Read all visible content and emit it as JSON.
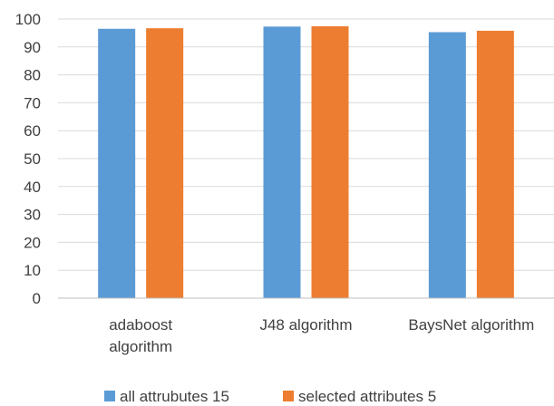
{
  "chart_data": {
    "type": "bar",
    "title": "",
    "xlabel": "",
    "ylabel": "",
    "ylim": [
      0,
      100
    ],
    "yticks": [
      0,
      10,
      20,
      30,
      40,
      50,
      60,
      70,
      80,
      90,
      100
    ],
    "grid": true,
    "legend_position": "bottom",
    "categories": [
      [
        "adaboost",
        "algorithm"
      ],
      [
        "J48 algorithm"
      ],
      [
        "BaysNet algorithm"
      ]
    ],
    "series": [
      {
        "name": "all attrubutes 15",
        "color": "#5b9bd5",
        "values": [
          96.5,
          97.3,
          95.3
        ]
      },
      {
        "name": "selected attributes 5",
        "color": "#ed7d31",
        "values": [
          96.7,
          97.4,
          95.8
        ]
      }
    ]
  }
}
